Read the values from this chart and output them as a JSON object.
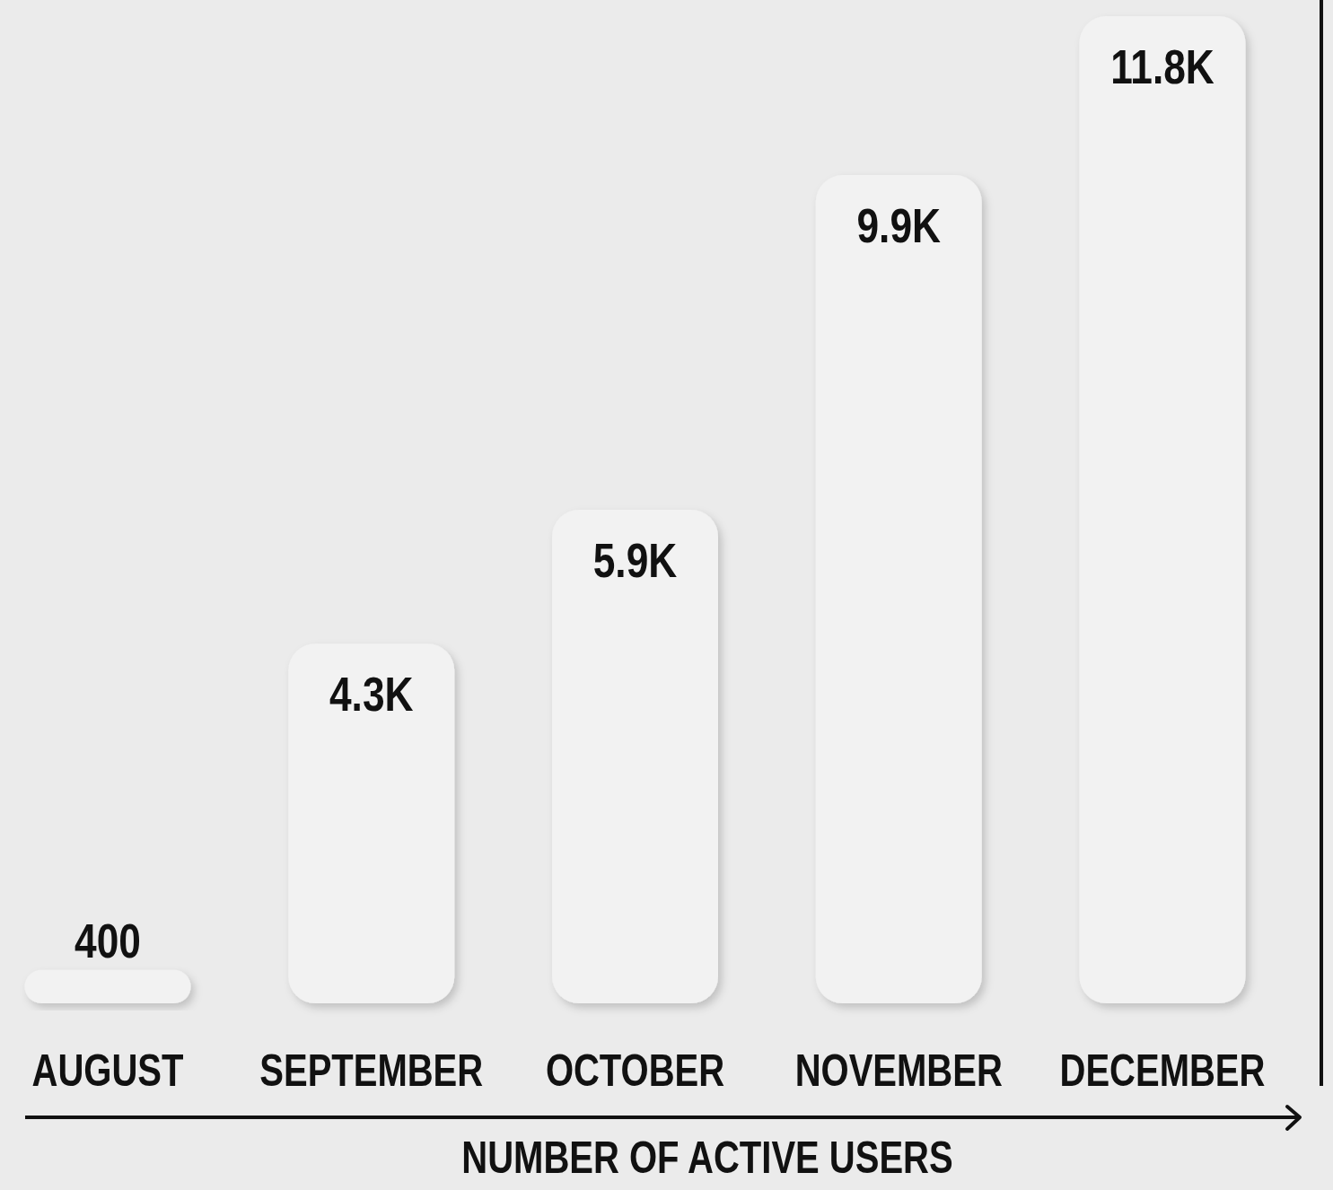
{
  "chart_data": {
    "type": "bar",
    "xlabel": "NUMBER OF ACTIVE USERS",
    "categories": [
      "AUGUST",
      "SEPTEMBER",
      "OCTOBER",
      "NOVEMBER",
      "DECEMBER"
    ],
    "values": [
      400,
      4300,
      5900,
      9900,
      11800
    ],
    "value_labels": [
      "400",
      "4.3K",
      "5.9K",
      "9.9K",
      "11.8K"
    ],
    "color": "#f2f2f2"
  }
}
